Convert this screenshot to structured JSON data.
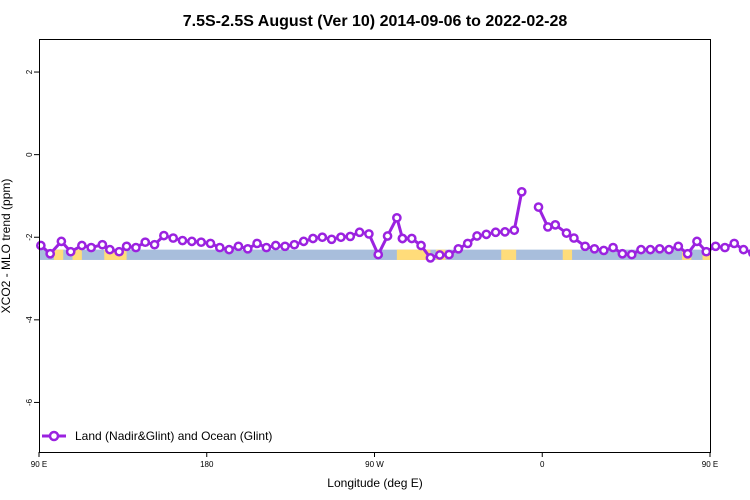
{
  "chart_data": {
    "type": "line",
    "title": "7.5S-2.5S August (Ver 10)   2014-09-06 to 2022-02-28",
    "xlabel": "Longitude (deg E)",
    "ylabel": "XCO2 - MLO trend (ppm)",
    "xlim": [
      90,
      450
    ],
    "ylim": [
      -7.2,
      2.8
    ],
    "x_ticks": [
      {
        "value": 90,
        "label": "90 E"
      },
      {
        "value": 180,
        "label": "180"
      },
      {
        "value": 270,
        "label": "90 W"
      },
      {
        "value": 360,
        "label": "0"
      },
      {
        "value": 450,
        "label": "90 E"
      },
      {
        "value": 540,
        "label": "180"
      }
    ],
    "y_ticks": [
      {
        "value": 2,
        "label": "2"
      },
      {
        "value": 0,
        "label": "0"
      },
      {
        "value": -2,
        "label": "-2"
      },
      {
        "value": -4,
        "label": "-4"
      },
      {
        "value": -6,
        "label": "-6"
      }
    ],
    "surface_bar": {
      "y_range": [
        -2.55,
        -2.3
      ],
      "ocean_color": "#a8bedc",
      "land_color": "#ffdc7a",
      "land_segments": [
        [
          98,
          103
        ],
        [
          108,
          113
        ],
        [
          125,
          137
        ],
        [
          282,
          300
        ],
        [
          303,
          308
        ],
        [
          338,
          346
        ],
        [
          371,
          376
        ],
        [
          435,
          440
        ],
        [
          446,
          452
        ],
        [
          495,
          501
        ],
        [
          508,
          512
        ],
        [
          525,
          531
        ]
      ]
    },
    "legend": {
      "label": "Land (Nadir&Glint) and Ocean (Glint)",
      "placement": "bottom-left"
    },
    "series": [
      {
        "name": "Land (Nadir&Glint) and Ocean (Glint)",
        "color": "#9b22e0",
        "segments": [
          {
            "x": [
              91,
              96,
              102,
              107,
              113,
              118,
              124,
              128,
              133,
              137,
              142,
              147,
              152,
              157,
              162,
              167,
              172,
              177,
              182,
              187,
              192,
              197,
              202,
              207,
              212,
              217,
              222,
              227,
              232,
              237,
              242,
              247,
              252,
              257,
              262,
              267,
              272,
              277,
              282,
              285
            ],
            "y": [
              -2.2,
              -2.4,
              -2.1,
              -2.35,
              -2.2,
              -2.25,
              -2.18,
              -2.3,
              -2.35,
              -2.22,
              -2.25,
              -2.12,
              -2.18,
              -1.96,
              -2.02,
              -2.08,
              -2.1,
              -2.12,
              -2.15,
              -2.25,
              -2.3,
              -2.22,
              -2.28,
              -2.15,
              -2.25,
              -2.2,
              -2.22,
              -2.18,
              -2.1,
              -2.03,
              -2,
              -2.05,
              -2,
              -1.98,
              -1.88,
              -1.92,
              -2.42,
              -1.97,
              -1.53,
              -2.03
            ]
          },
          {
            "x": [
              285,
              290,
              295,
              300,
              305,
              310,
              315,
              320,
              325,
              330,
              335,
              340,
              345,
              349
            ],
            "y": [
              -2.03,
              -2.03,
              -2.2,
              -2.5,
              -2.43,
              -2.42,
              -2.28,
              -2.15,
              -1.97,
              -1.93,
              -1.88,
              -1.87,
              -1.83,
              -0.9
            ]
          },
          {
            "x": [
              358,
              363,
              367,
              373,
              377,
              383,
              388,
              393,
              398,
              403,
              408,
              413,
              418,
              423,
              428,
              433,
              438,
              443,
              448,
              453,
              458,
              463,
              468,
              473,
              478,
              483,
              488,
              493,
              498,
              503,
              508,
              513,
              518,
              523
            ],
            "y": [
              -1.27,
              -1.75,
              -1.7,
              -1.9,
              -2.02,
              -2.22,
              -2.28,
              -2.32,
              -2.25,
              -2.4,
              -2.42,
              -2.3,
              -2.3,
              -2.28,
              -2.3,
              -2.22,
              -2.4,
              -2.1,
              -2.35,
              -2.22,
              -2.25,
              -2.15,
              -2.3,
              -2.38,
              -2.22,
              -2.25,
              -2.1,
              -2.18,
              -1.95,
              -2,
              -2.05,
              -2.07,
              -2.1,
              -2.1
            ]
          }
        ]
      }
    ]
  }
}
